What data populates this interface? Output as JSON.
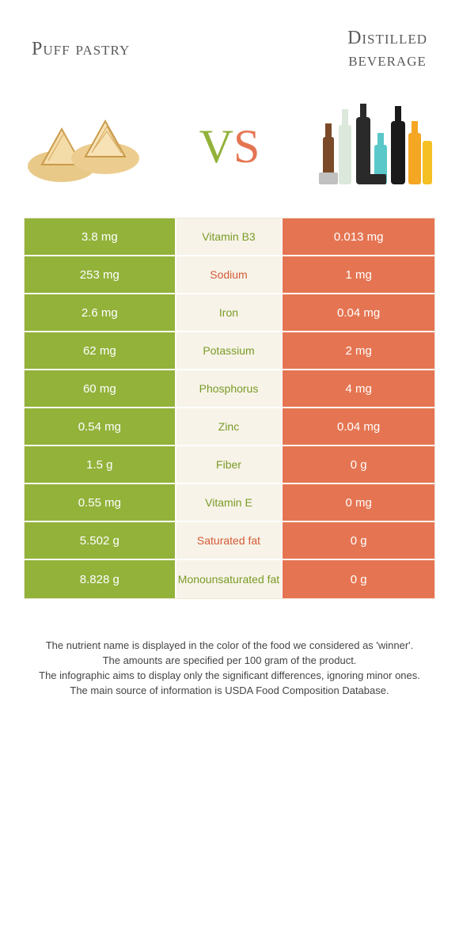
{
  "header": {
    "left_title": "Puff pastry",
    "right_title_line1": "Distilled",
    "right_title_line2": "beverage"
  },
  "vs": {
    "v": "V",
    "s": "S"
  },
  "colors": {
    "green": "#92b23a",
    "orange": "#e57552",
    "mid_bg": "#f7f3e8",
    "mid_green_text": "#7a9b28",
    "mid_orange_text": "#d45a38",
    "title_text": "#5a5a5a"
  },
  "rows": [
    {
      "left": "3.8 mg",
      "label": "Vitamin B3",
      "winner": "green",
      "right": "0.013 mg"
    },
    {
      "left": "253 mg",
      "label": "Sodium",
      "winner": "orange",
      "right": "1 mg"
    },
    {
      "left": "2.6 mg",
      "label": "Iron",
      "winner": "green",
      "right": "0.04 mg"
    },
    {
      "left": "62 mg",
      "label": "Potassium",
      "winner": "green",
      "right": "2 mg"
    },
    {
      "left": "60 mg",
      "label": "Phosphorus",
      "winner": "green",
      "right": "4 mg"
    },
    {
      "left": "0.54 mg",
      "label": "Zinc",
      "winner": "green",
      "right": "0.04 mg"
    },
    {
      "left": "1.5 g",
      "label": "Fiber",
      "winner": "green",
      "right": "0 g"
    },
    {
      "left": "0.55 mg",
      "label": "Vitamin E",
      "winner": "green",
      "right": "0 mg"
    },
    {
      "left": "5.502 g",
      "label": "Saturated fat",
      "winner": "orange",
      "right": "0 g"
    },
    {
      "left": "8.828 g",
      "label": "Monounsaturated fat",
      "winner": "green",
      "right": "0 g"
    }
  ],
  "footer": {
    "line1": "The nutrient name is displayed in the color of the food we considered as 'winner'.",
    "line2": "The amounts are specified per 100 gram of the product.",
    "line3": "The infographic aims to display only the significant differences, ignoring minor ones.",
    "line4": "The main source of information is USDA Food Composition Database."
  }
}
